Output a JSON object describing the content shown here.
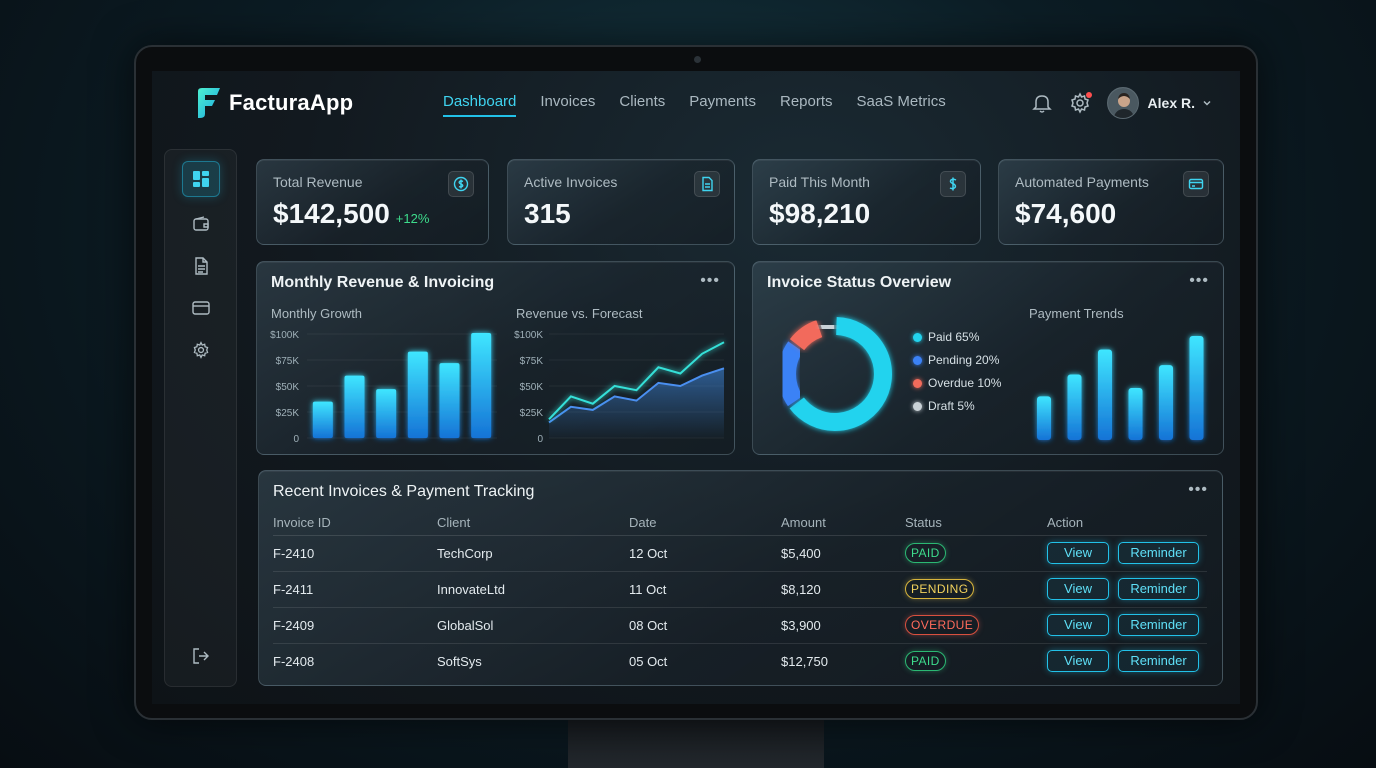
{
  "app": {
    "name": "FacturaApp"
  },
  "nav": {
    "tabs": [
      {
        "label": "Dashboard",
        "active": true
      },
      {
        "label": "Invoices"
      },
      {
        "label": "Clients"
      },
      {
        "label": "Payments"
      },
      {
        "label": "Reports"
      },
      {
        "label": "SaaS Metrics"
      }
    ],
    "user": {
      "name": "Alex R."
    },
    "icons": [
      "bell-icon",
      "gear-icon",
      "chevron-down-icon"
    ]
  },
  "sidebar": {
    "items": [
      {
        "icon": "dashboard-icon",
        "active": true
      },
      {
        "icon": "wallet-icon"
      },
      {
        "icon": "document-icon"
      },
      {
        "icon": "card-icon"
      },
      {
        "icon": "settings-icon"
      },
      {
        "icon": "logout-icon"
      }
    ]
  },
  "stats": [
    {
      "label": "Total Revenue",
      "value": "$142,500",
      "delta": "+12%",
      "icon": "dollar-circle-icon"
    },
    {
      "label": "Active Invoices",
      "value": "315",
      "icon": "document-icon"
    },
    {
      "label": "Paid This Month",
      "value": "$98,210",
      "icon": "dollar-icon"
    },
    {
      "label": "Automated Payments",
      "value": "$74,600",
      "icon": "card-icon"
    }
  ],
  "revenue_panel": {
    "title": "Monthly Revenue & Invoicing",
    "growth_title": "Monthly Growth",
    "forecast_title": "Revenue vs. Forecast"
  },
  "status_panel": {
    "title": "Invoice Status Overview",
    "trends_title": "Payment Trends"
  },
  "table": {
    "title": "Recent Invoices & Payment Tracking",
    "headers": [
      "Invoice ID",
      "Client",
      "Date",
      "Amount",
      "Status",
      "Action"
    ],
    "rows": [
      {
        "id": "F-2410",
        "client": "TechCorp",
        "date": "12 Oct",
        "amount": "$5,400",
        "status": "PAID"
      },
      {
        "id": "F-2411",
        "client": "InnovateLtd",
        "date": "11 Oct",
        "amount": "$8,120",
        "status": "PENDING"
      },
      {
        "id": "F-2409",
        "client": "GlobalSol",
        "date": "08 Oct",
        "amount": "$3,900",
        "status": "OVERDUE"
      },
      {
        "id": "F-2408",
        "client": "SoftSys",
        "date": "05 Oct",
        "amount": "$12,750",
        "status": "PAID"
      }
    ],
    "view_label": "View",
    "reminder_label": "Reminder"
  },
  "colors": {
    "accent": "#22c1e8",
    "paid": "#22d3ee",
    "pending": "#3b82f6",
    "overdue": "#f26b5b",
    "draft": "#c9d1d6",
    "positive": "#3ddc8c"
  },
  "chart_data": [
    {
      "type": "bar",
      "title": "Monthly Growth",
      "y_ticks": [
        "$100K",
        "$75K",
        "$50K",
        "$25K",
        "0"
      ],
      "ylim": [
        0,
        100000
      ],
      "values": [
        35000,
        60000,
        47000,
        83000,
        72000,
        101000
      ],
      "grid": true
    },
    {
      "type": "area",
      "title": "Revenue vs. Forecast",
      "y_ticks": [
        "$100K",
        "$75K",
        "$50K",
        "$25K",
        "0"
      ],
      "ylim": [
        0,
        100000
      ],
      "series": [
        {
          "values": [
            18000,
            40000,
            33000,
            50000,
            46000,
            68000,
            62000,
            81000,
            92000
          ]
        },
        {
          "values": [
            15000,
            30000,
            27000,
            40000,
            36000,
            53000,
            50000,
            60000,
            67000
          ]
        }
      ],
      "grid": true
    },
    {
      "type": "pie",
      "legend": [
        {
          "label": "Paid 65%",
          "value": 65,
          "color": "#22d3ee"
        },
        {
          "label": "Pending 20%",
          "value": 20,
          "color": "#3b82f6"
        },
        {
          "label": "Overdue 10%",
          "value": 10,
          "color": "#f26b5b"
        },
        {
          "label": "Draft 5%",
          "value": 5,
          "color": "#c9d1d6"
        }
      ],
      "legend_position": "right"
    },
    {
      "type": "bar",
      "title": "Payment Trends",
      "values": [
        42,
        63,
        87,
        50,
        72,
        100
      ]
    }
  ]
}
